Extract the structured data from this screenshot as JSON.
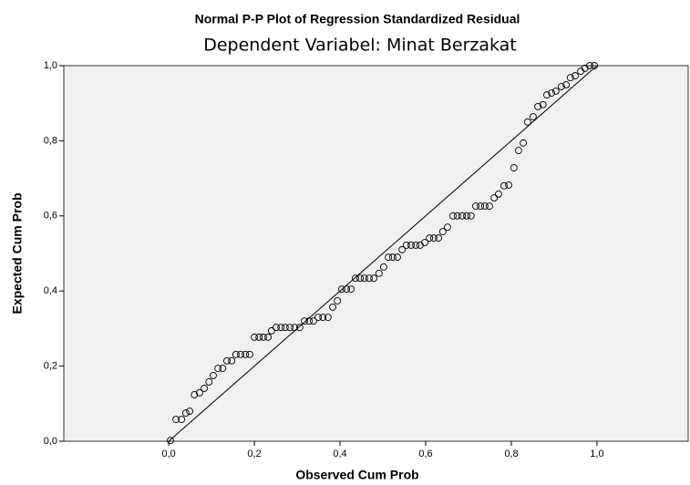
{
  "chart_data": {
    "type": "scatter",
    "title": "Normal P-P Plot of Regression Standardized Residual",
    "subtitle": "Dependent Variabel: Minat Berzakat",
    "x_label": "Observed Cum Prob",
    "y_label": "Expected Cum Prob",
    "x": [
      0.004,
      0.017,
      0.03,
      0.04,
      0.049,
      0.06,
      0.072,
      0.083,
      0.094,
      0.104,
      0.115,
      0.126,
      0.136,
      0.147,
      0.157,
      0.168,
      0.179,
      0.189,
      0.2,
      0.211,
      0.221,
      0.232,
      0.24,
      0.251,
      0.262,
      0.272,
      0.283,
      0.294,
      0.306,
      0.317,
      0.328,
      0.338,
      0.349,
      0.36,
      0.372,
      0.383,
      0.394,
      0.404,
      0.415,
      0.426,
      0.436,
      0.447,
      0.457,
      0.468,
      0.479,
      0.491,
      0.502,
      0.513,
      0.523,
      0.534,
      0.545,
      0.555,
      0.566,
      0.577,
      0.587,
      0.598,
      0.609,
      0.619,
      0.63,
      0.64,
      0.651,
      0.664,
      0.674,
      0.685,
      0.696,
      0.706,
      0.717,
      0.728,
      0.738,
      0.749,
      0.76,
      0.77,
      0.783,
      0.794,
      0.806,
      0.817,
      0.828,
      0.838,
      0.851,
      0.862,
      0.874,
      0.883,
      0.894,
      0.904,
      0.917,
      0.928,
      0.938,
      0.949,
      0.962,
      0.972,
      0.983,
      0.994
    ],
    "values": [
      0.002,
      0.058,
      0.058,
      0.075,
      0.08,
      0.124,
      0.129,
      0.141,
      0.158,
      0.175,
      0.194,
      0.194,
      0.214,
      0.214,
      0.231,
      0.231,
      0.231,
      0.231,
      0.277,
      0.277,
      0.277,
      0.277,
      0.294,
      0.303,
      0.303,
      0.303,
      0.303,
      0.303,
      0.303,
      0.32,
      0.32,
      0.32,
      0.33,
      0.33,
      0.33,
      0.357,
      0.374,
      0.405,
      0.405,
      0.405,
      0.434,
      0.434,
      0.434,
      0.434,
      0.434,
      0.447,
      0.464,
      0.49,
      0.49,
      0.49,
      0.51,
      0.522,
      0.522,
      0.522,
      0.522,
      0.529,
      0.541,
      0.541,
      0.541,
      0.558,
      0.57,
      0.6,
      0.6,
      0.6,
      0.6,
      0.6,
      0.626,
      0.626,
      0.626,
      0.626,
      0.648,
      0.658,
      0.68,
      0.682,
      0.728,
      0.774,
      0.794,
      0.85,
      0.864,
      0.891,
      0.896,
      0.922,
      0.927,
      0.932,
      0.944,
      0.949,
      0.968,
      0.973,
      0.985,
      0.993,
      1.0,
      1.0
    ],
    "xlim": [
      -0.245,
      1.213
    ],
    "ylim": [
      0,
      1
    ],
    "xticks": [
      {
        "value": 0,
        "label": "0,0"
      },
      {
        "value": 0.2,
        "label": "0,2"
      },
      {
        "value": 0.4,
        "label": "0,4"
      },
      {
        "value": 0.6,
        "label": "0,6"
      },
      {
        "value": 0.8,
        "label": "0,8"
      },
      {
        "value": 1,
        "label": "1,0"
      }
    ],
    "yticks": [
      {
        "value": 0,
        "label": "0,0"
      },
      {
        "value": 0.2,
        "label": "0,2"
      },
      {
        "value": 0.4,
        "label": "0,4"
      },
      {
        "value": 0.6,
        "label": "0,6"
      },
      {
        "value": 0.8,
        "label": "0,8"
      },
      {
        "value": 1,
        "label": "1,0"
      }
    ],
    "marker_color": "#000000",
    "background": "#f0f0f0"
  }
}
